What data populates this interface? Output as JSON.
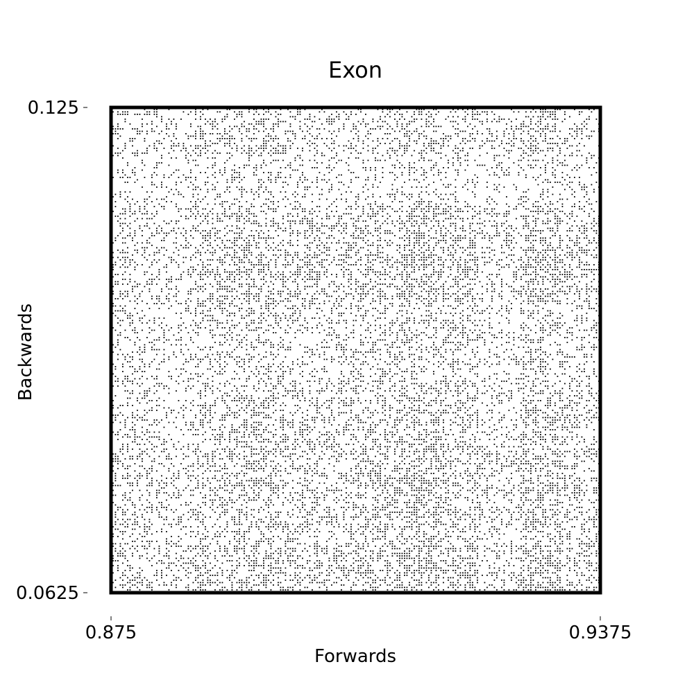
{
  "chart_data": {
    "type": "scatter",
    "title": "Exon",
    "xlabel": "Forwards",
    "ylabel": "Backwards",
    "xlim": [
      0.875,
      0.9375
    ],
    "ylim": [
      0.0625,
      0.125
    ],
    "x_ticks": [
      {
        "value": 0.875,
        "label": "0.875"
      },
      {
        "value": 0.9375,
        "label": "0.9375"
      }
    ],
    "y_ticks": [
      {
        "value": 0.125,
        "label": "0.125"
      },
      {
        "value": 0.0625,
        "label": "0.0625"
      }
    ],
    "grid": false,
    "legend": "none",
    "marker_color": "#000000",
    "frame_color": "#000000",
    "density_pattern": {
      "description_note": "",
      "x_band_weights": [
        0.55,
        0.35,
        0.75,
        0.85,
        0.65,
        0.55,
        0.7,
        0.95,
        0.8,
        0.4,
        0.9,
        0.6
      ],
      "y_band_weights": [
        0.6,
        0.3,
        0.8,
        0.9,
        0.55,
        0.5,
        0.75,
        0.85,
        0.7,
        0.9
      ]
    }
  }
}
